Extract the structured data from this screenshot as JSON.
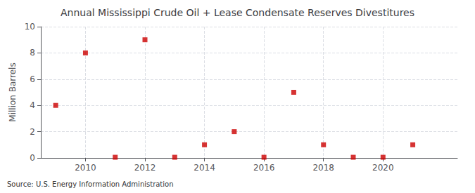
{
  "chart_data": {
    "type": "scatter",
    "title": "Annual Mississippi Crude Oil + Lease Condensate Reserves Divestitures",
    "ylabel": "Million Barrels",
    "annotation": "Source: U.S. Energy Information Administration",
    "x": [
      2009,
      2010,
      2011,
      2012,
      2013,
      2014,
      2015,
      2016,
      2017,
      2018,
      2019,
      2020,
      2021
    ],
    "values": [
      4.0,
      8.0,
      0.05,
      9.0,
      0.05,
      1.0,
      2.0,
      0.05,
      5.0,
      1.0,
      0.05,
      0.05,
      1.0
    ],
    "color": "#cc0000",
    "marker": "square",
    "xlim": [
      2008.5,
      2022.5
    ],
    "xticks": [
      2010,
      2012,
      2014,
      2016,
      2018,
      2020
    ],
    "ylim": [
      0,
      10
    ],
    "yticks": [
      0,
      2,
      4,
      6,
      8,
      10
    ],
    "grid": true
  }
}
